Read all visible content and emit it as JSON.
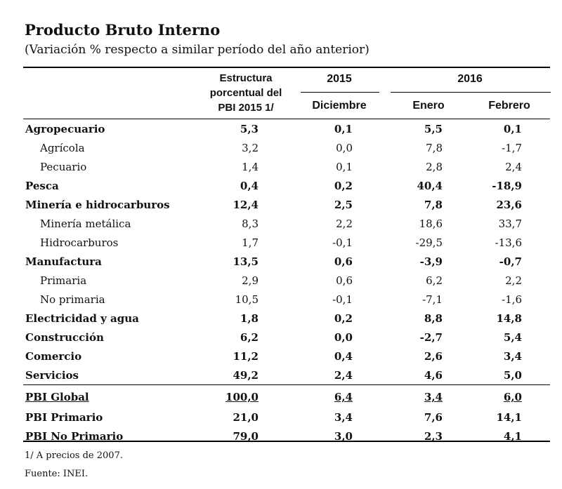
{
  "title": "Producto Bruto Interno",
  "subtitle": "(Variación % respecto a similar período del año anterior)",
  "headers": {
    "structure_lines": [
      "Estructura",
      "porcentual del",
      "PBI 2015 1/"
    ],
    "year_2015": "2015",
    "year_2016": "2016",
    "diciembre": "Diciembre",
    "enero": "Enero",
    "febrero": "Febrero"
  },
  "rows": [
    {
      "label": "Agropecuario",
      "v": [
        "5,3",
        "0,1",
        "5,5",
        "0,1"
      ]
    },
    {
      "label": "Agrícola",
      "v": [
        "3,2",
        "0,0",
        "7,8",
        "-1,7"
      ]
    },
    {
      "label": "Pecuario",
      "v": [
        "1,4",
        "0,1",
        "2,8",
        "2,4"
      ]
    },
    {
      "label": "Pesca",
      "v": [
        "0,4",
        "0,2",
        "40,4",
        "-18,9"
      ]
    },
    {
      "label": "Minería e hidrocarburos",
      "v": [
        "12,4",
        "2,5",
        "7,8",
        "23,6"
      ]
    },
    {
      "label": "Minería metálica",
      "v": [
        "8,3",
        "2,2",
        "18,6",
        "33,7"
      ]
    },
    {
      "label": "Hidrocarburos",
      "v": [
        "1,7",
        "-0,1",
        "-29,5",
        "-13,6"
      ]
    },
    {
      "label": "Manufactura",
      "v": [
        "13,5",
        "0,6",
        "-3,9",
        "-0,7"
      ]
    },
    {
      "label": "Primaria",
      "v": [
        "2,9",
        "0,6",
        "6,2",
        "2,2"
      ]
    },
    {
      "label": "No primaria",
      "v": [
        "10,5",
        "-0,1",
        "-7,1",
        "-1,6"
      ]
    },
    {
      "label": "Electricidad y agua",
      "v": [
        "1,8",
        "0,2",
        "8,8",
        "14,8"
      ]
    },
    {
      "label": "Construcción",
      "v": [
        "6,2",
        "0,0",
        "-2,7",
        "5,4"
      ]
    },
    {
      "label": "Comercio",
      "v": [
        "11,2",
        "0,4",
        "2,6",
        "3,4"
      ]
    },
    {
      "label": "Servicios",
      "v": [
        "49,2",
        "2,4",
        "4,6",
        "5,0"
      ]
    },
    {
      "label": "PBI Global",
      "v": [
        "100,0",
        "6,4",
        "3,4",
        "6,0"
      ]
    },
    {
      "label": "PBI Primario",
      "v": [
        "21,0",
        "3,4",
        "7,6",
        "14,1"
      ]
    },
    {
      "label": "PBI No Primario",
      "v": [
        "79,0",
        "3,0",
        "2,3",
        "4,1"
      ]
    }
  ],
  "footnotes": {
    "note1": "1/ A precios de 2007.",
    "source": "Fuente: INEI."
  }
}
